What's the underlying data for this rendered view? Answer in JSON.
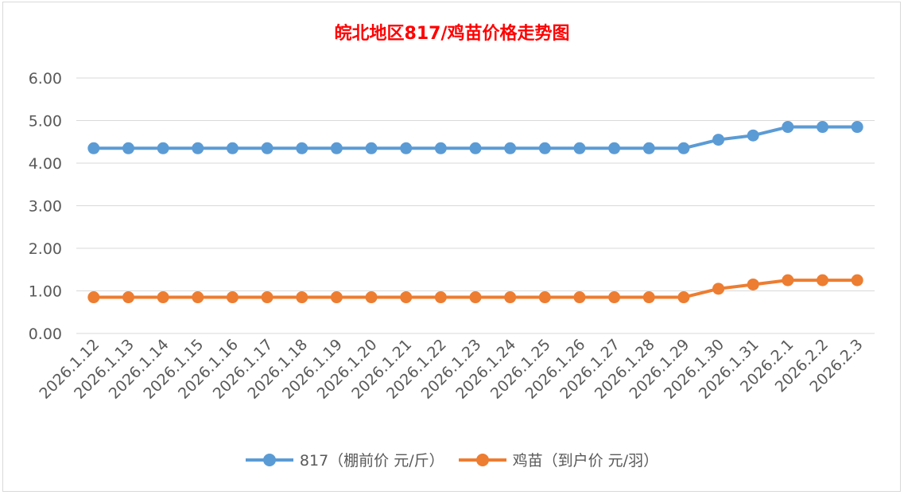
{
  "colors": {
    "title": "#ff0000",
    "series1": "#5b9bd5",
    "series2": "#ed7d31",
    "grid": "#d9d9d9"
  },
  "chart_data": {
    "type": "line",
    "title": "皖北地区817/鸡苗价格走势图",
    "xlabel": "",
    "ylabel": "",
    "ylim": [
      0,
      6
    ],
    "yticks": [
      "0.00",
      "1.00",
      "2.00",
      "3.00",
      "4.00",
      "5.00",
      "6.00"
    ],
    "grid": true,
    "legend_position": "bottom",
    "categories": [
      "2026.1.12",
      "2026.1.13",
      "2026.1.14",
      "2026.1.15",
      "2026.1.16",
      "2026.1.17",
      "2026.1.18",
      "2026.1.19",
      "2026.1.20",
      "2026.1.21",
      "2026.1.22",
      "2026.1.23",
      "2026.1.24",
      "2026.1.25",
      "2026.1.26",
      "2026.1.27",
      "2026.1.28",
      "2026.1.29",
      "2026.1.30",
      "2026.1.31",
      "2026.2.1",
      "2026.2.2",
      "2026.2.3"
    ],
    "series": [
      {
        "name": "817（棚前价 元/斤）",
        "values": [
          4.35,
          4.35,
          4.35,
          4.35,
          4.35,
          4.35,
          4.35,
          4.35,
          4.35,
          4.35,
          4.35,
          4.35,
          4.35,
          4.35,
          4.35,
          4.35,
          4.35,
          4.35,
          4.55,
          4.65,
          4.85,
          4.85,
          4.85
        ]
      },
      {
        "name": "鸡苗（到户价 元/羽）",
        "values": [
          0.85,
          0.85,
          0.85,
          0.85,
          0.85,
          0.85,
          0.85,
          0.85,
          0.85,
          0.85,
          0.85,
          0.85,
          0.85,
          0.85,
          0.85,
          0.85,
          0.85,
          0.85,
          1.05,
          1.15,
          1.25,
          1.25,
          1.25
        ]
      }
    ]
  }
}
